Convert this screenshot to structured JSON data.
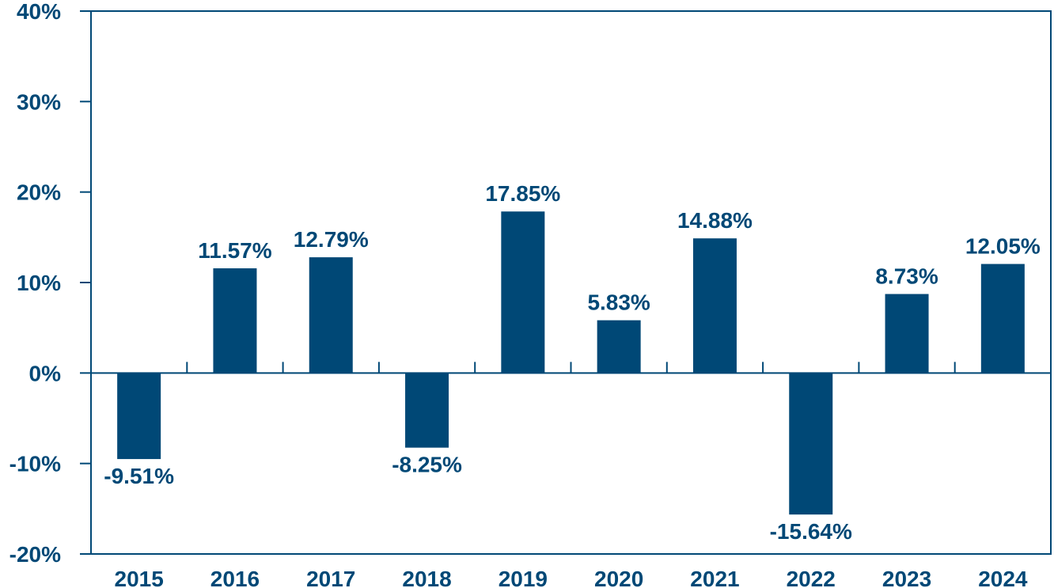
{
  "colors": {
    "bar": "#004876",
    "axis": "#004876",
    "text": "#004876",
    "background": "#ffffff"
  },
  "chart_data": {
    "type": "bar",
    "categories": [
      "2015",
      "2016",
      "2017",
      "2018",
      "2019",
      "2020",
      "2021",
      "2022",
      "2023",
      "2024"
    ],
    "values": [
      -9.51,
      11.57,
      12.79,
      -8.25,
      17.85,
      5.83,
      14.88,
      -15.64,
      8.73,
      12.05
    ],
    "data_labels": [
      "-9.51%",
      "11.57%",
      "12.79%",
      "-8.25%",
      "17.85%",
      "5.83%",
      "14.88%",
      "-15.64%",
      "8.73%",
      "12.05%"
    ],
    "y_ticks": [
      40,
      30,
      20,
      10,
      0,
      -10,
      -20
    ],
    "y_tick_labels": [
      "40%",
      "30%",
      "20%",
      "10%",
      "0%",
      "-10%",
      "-20%"
    ],
    "ylim": [
      -20,
      40
    ],
    "title": "",
    "xlabel": "",
    "ylabel": "",
    "grid": false,
    "legend": "none"
  }
}
